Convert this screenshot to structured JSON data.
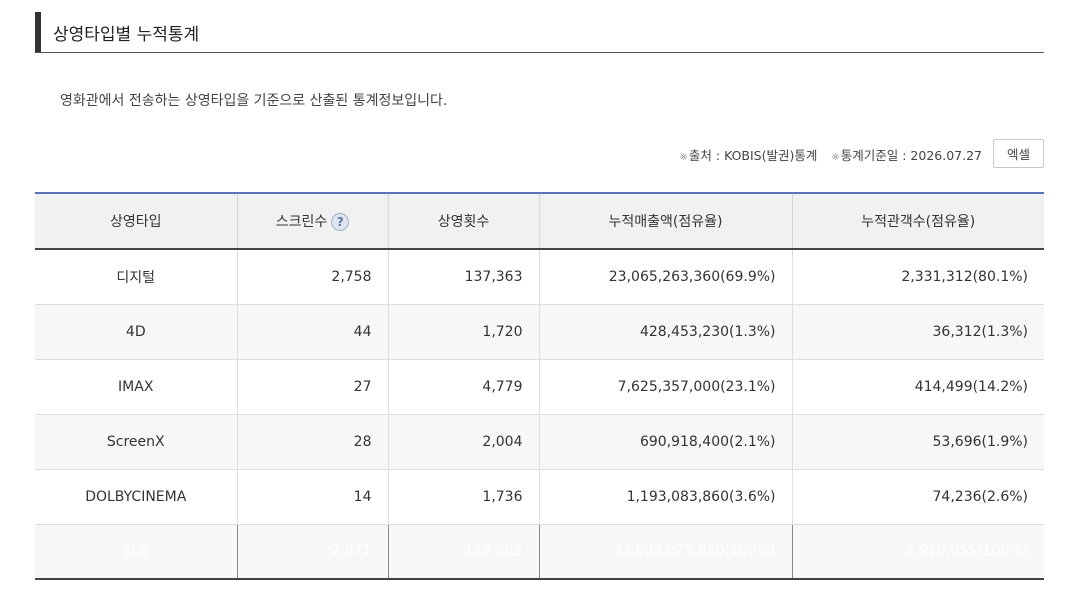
{
  "section": {
    "title": "상영타입별 누적통계"
  },
  "description": "영화관에서 전송하는 상영타입을 기준으로 산출된 통계정보입니다.",
  "meta": {
    "source_label": "출처 : KOBIS(발권)통계",
    "date_label": "통계기준일 : 2026.07.27",
    "excel_button": "엑셀"
  },
  "table": {
    "headers": {
      "type": "상영타입",
      "screens": "스크린수",
      "showings": "상영횟수",
      "revenue": "누적매출액(점유율)",
      "audience": "누적관객수(점유율)"
    },
    "rows": [
      {
        "type": "디지털",
        "screens": "2,758",
        "showings": "137,363",
        "revenue": "23,065,263,360(69.9%)",
        "audience": "2,331,312(80.1%)"
      },
      {
        "type": "4D",
        "screens": "44",
        "showings": "1,720",
        "revenue": "428,453,230(1.3%)",
        "audience": "36,312(1.3%)"
      },
      {
        "type": "IMAX",
        "screens": "27",
        "showings": "4,779",
        "revenue": "7,625,357,000(23.1%)",
        "audience": "414,499(14.2%)"
      },
      {
        "type": "ScreenX",
        "screens": "28",
        "showings": "2,004",
        "revenue": "690,918,400(2.1%)",
        "audience": "53,696(1.9%)"
      },
      {
        "type": "DOLBYCINEMA",
        "screens": "14",
        "showings": "1,736",
        "revenue": "1,193,083,860(3.6%)",
        "audience": "74,236(2.6%)"
      }
    ],
    "total": {
      "type": "합계",
      "screens": "2,871",
      "showings": "147,602",
      "revenue": "33,003,075,850(100%)",
      "audience": "2,910,055(100%)"
    }
  },
  "colors": {
    "header_top_border": "#5875b8",
    "total_row_bg": "#6b6b6b",
    "title_bar": "#333333"
  }
}
